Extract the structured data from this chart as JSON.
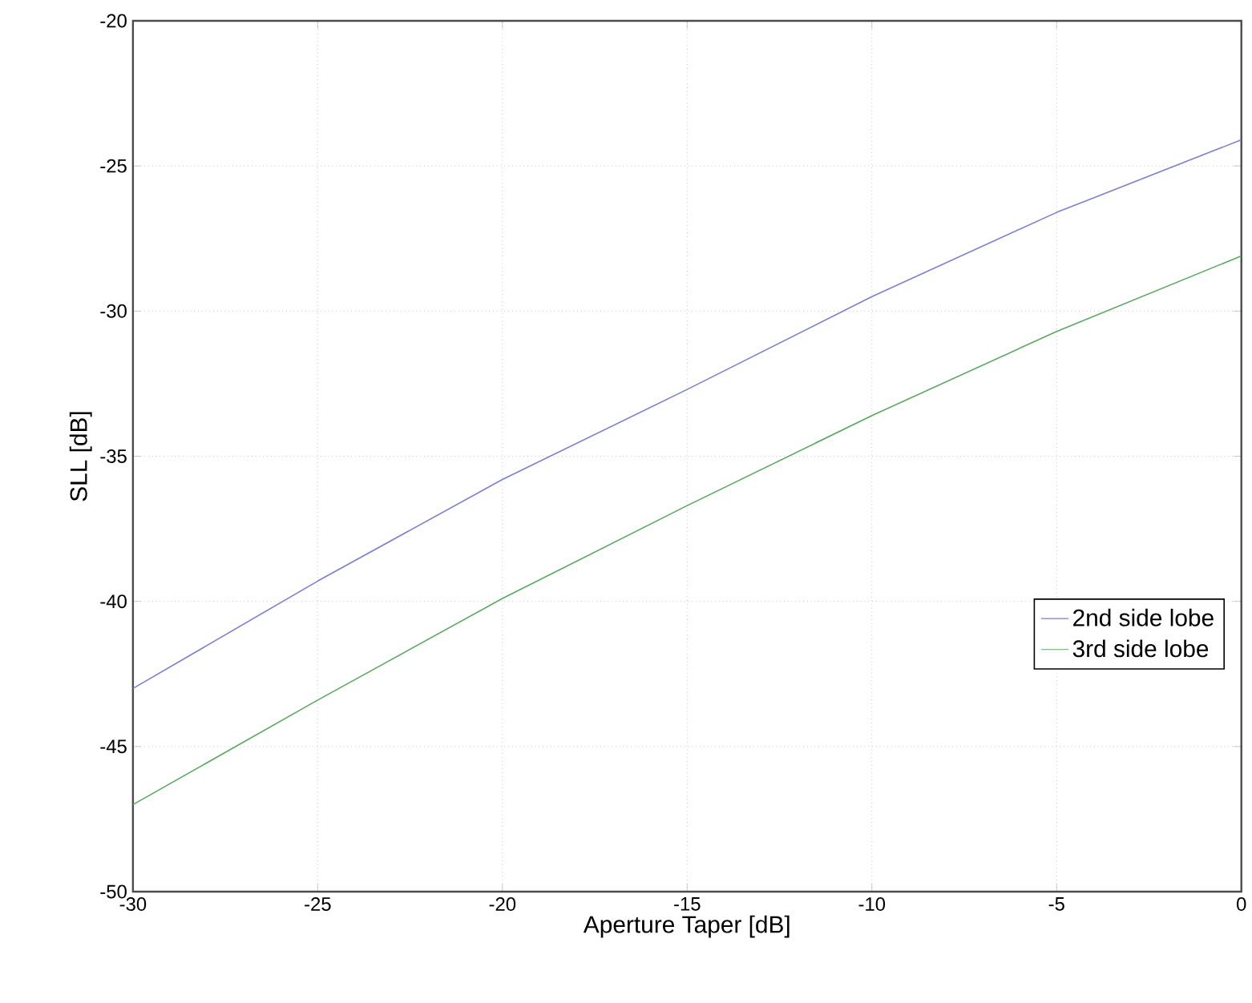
{
  "chart_data": {
    "type": "line",
    "xlabel": "Aperture Taper [dB]",
    "ylabel": "SLL [dB]",
    "x": [
      -30,
      -25,
      -20,
      -15,
      -10,
      -5,
      0
    ],
    "series": [
      {
        "name": "2nd side lobe",
        "color": "#7b7fd4",
        "values": [
          -43.0,
          -39.3,
          -35.8,
          -32.7,
          -29.5,
          -26.6,
          -24.1
        ]
      },
      {
        "name": "3rd side lobe",
        "color": "#5aa860",
        "values": [
          -47.0,
          -43.4,
          -39.9,
          -36.7,
          -33.6,
          -30.7,
          -28.1
        ]
      }
    ],
    "xlim": [
      -30,
      0
    ],
    "ylim": [
      -50,
      -20
    ],
    "xticks": [
      -30,
      -25,
      -20,
      -15,
      -10,
      -5,
      0
    ],
    "yticks": [
      -50,
      -45,
      -40,
      -35,
      -30,
      -25,
      -20
    ],
    "grid": true,
    "legend": "bottom right",
    "marker": "none",
    "line_style": "solid"
  }
}
